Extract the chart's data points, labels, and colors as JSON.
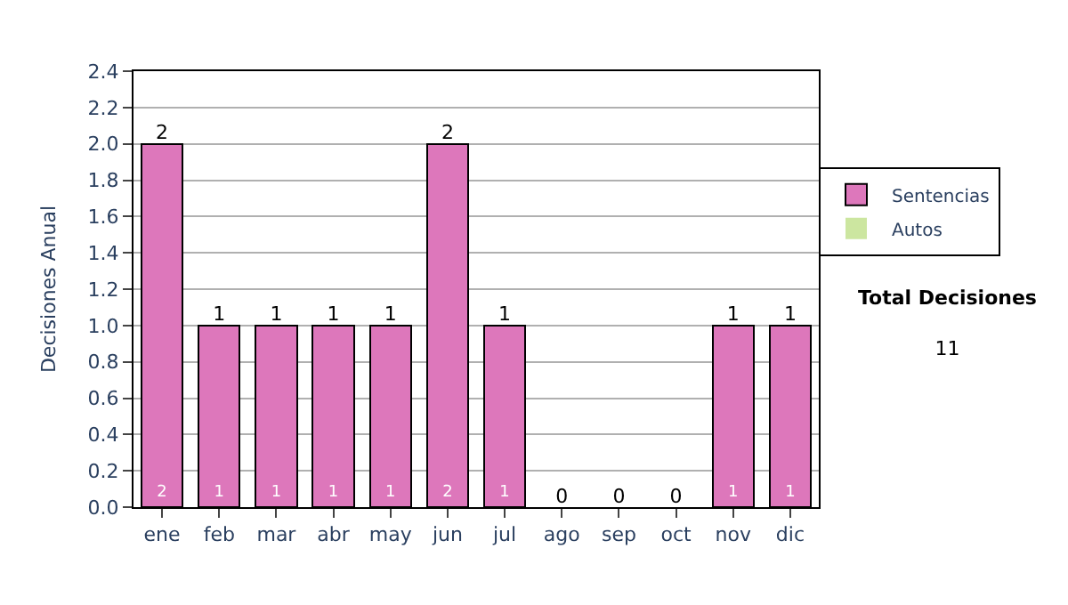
{
  "chart_data": {
    "type": "bar",
    "stacked": true,
    "ylabel": "Decisiones Anual",
    "categories": [
      "ene",
      "feb",
      "mar",
      "abr",
      "may",
      "jun",
      "jul",
      "ago",
      "sep",
      "oct",
      "nov",
      "dic"
    ],
    "series": [
      {
        "name": "Sentencias",
        "color": "#dd77bb",
        "values": [
          2,
          1,
          1,
          1,
          1,
          2,
          1,
          0,
          0,
          0,
          1,
          1
        ],
        "value_labels": [
          "2",
          "1",
          "1",
          "1",
          "1",
          "2",
          "1",
          null,
          null,
          null,
          "1",
          "1"
        ]
      },
      {
        "name": "Autos",
        "color": "#cce6a0",
        "values": [
          0,
          0,
          0,
          0,
          0,
          0,
          0,
          0,
          0,
          0,
          0,
          0
        ]
      }
    ],
    "totals": [
      "2",
      "1",
      "1",
      "1",
      "1",
      "2",
      "1",
      "0",
      "0",
      "0",
      "1",
      "1"
    ],
    "ylim": [
      0,
      2.4
    ],
    "yticks": [
      {
        "value": 0,
        "label": "0.0"
      },
      {
        "value": 0.2,
        "label": "0.2"
      },
      {
        "value": 0.4,
        "label": "0.4"
      },
      {
        "value": 0.6,
        "label": "0.6"
      },
      {
        "value": 0.8,
        "label": "0.8"
      },
      {
        "value": 1.0,
        "label": "1.0"
      },
      {
        "value": 1.2,
        "label": "1.2"
      },
      {
        "value": 1.4,
        "label": "1.4"
      },
      {
        "value": 1.6,
        "label": "1.6"
      },
      {
        "value": 1.8,
        "label": "1.8"
      },
      {
        "value": 2.0,
        "label": "2.0"
      },
      {
        "value": 2.2,
        "label": "2.2"
      },
      {
        "value": 2.4,
        "label": "2.4"
      }
    ],
    "grid": "y",
    "legend": "right",
    "annotations": [
      "Total Decisiones\n11"
    ]
  }
}
